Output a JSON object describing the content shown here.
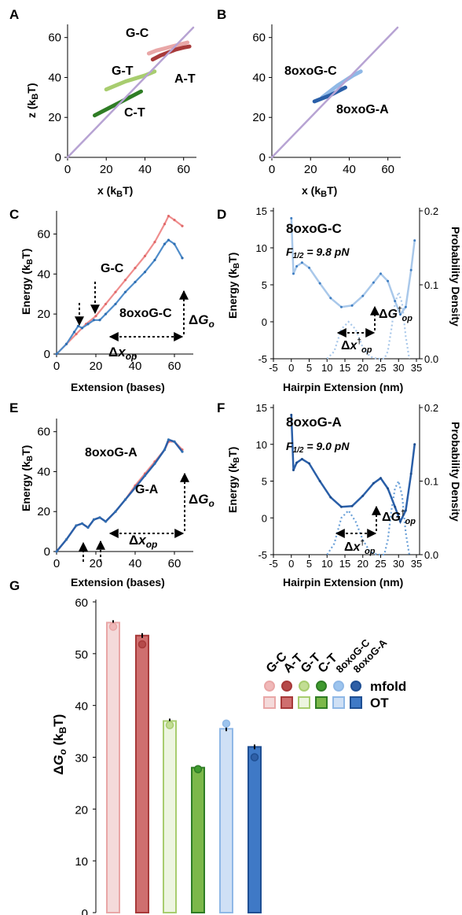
{
  "panels": {
    "A": "A",
    "B": "B",
    "C": "C",
    "D": "D",
    "E": "E",
    "F": "F",
    "G": "G"
  },
  "colors": {
    "GC": "#e9a7a7",
    "AT": "#a83a3a",
    "GT": "#a8cd6f",
    "CT": "#2f7d25",
    "oxoC": "#8fb8e6",
    "oxoA": "#2a5fa8",
    "diag": "#b7a3d3",
    "pinkLine": "#ef8d8d",
    "blueDot": "#4f8cc9",
    "blueLine": "#a9c8ea"
  },
  "chart_data": [
    {
      "panel": "A",
      "type": "line",
      "xlabel": "x (kBT)",
      "ylabel": "z (kBT)",
      "xlim": [
        0,
        65
      ],
      "ylim": [
        0,
        65
      ],
      "xticks": [
        "0",
        "20",
        "40",
        "60"
      ],
      "yticks": [
        "0",
        "20",
        "40",
        "60"
      ],
      "series": [
        {
          "name": "G-C",
          "color": "#e9a7a7",
          "x": [
            42,
            46,
            50,
            54,
            58,
            62
          ],
          "y": [
            52,
            53.5,
            54.5,
            55.5,
            56.5,
            57.5
          ]
        },
        {
          "name": "A-T",
          "color": "#a83a3a",
          "x": [
            44,
            48,
            52,
            56,
            60,
            63
          ],
          "y": [
            49,
            51,
            52.5,
            54,
            55,
            55.5
          ]
        },
        {
          "name": "G-T",
          "color": "#a8cd6f",
          "x": [
            20,
            25,
            30,
            35,
            40,
            45
          ],
          "y": [
            34,
            36,
            38,
            39.5,
            41,
            43
          ]
        },
        {
          "name": "C-T",
          "color": "#2f7d25",
          "x": [
            14,
            18,
            22,
            26,
            30,
            34,
            38
          ],
          "y": [
            21,
            23,
            25,
            27,
            29,
            31,
            33
          ]
        },
        {
          "name": "",
          "color": "#b7a3d3",
          "x": [
            0,
            65
          ],
          "y": [
            0,
            65
          ]
        }
      ]
    },
    {
      "panel": "B",
      "type": "line",
      "xlabel": "x (kBT)",
      "ylabel": "",
      "xlim": [
        0,
        65
      ],
      "ylim": [
        0,
        65
      ],
      "xticks": [
        "0",
        "20",
        "40",
        "60"
      ],
      "yticks": [
        "0",
        "20",
        "40",
        "60"
      ],
      "series": [
        {
          "name": "8oxoG-C",
          "color": "#8fb8e6",
          "x": [
            26,
            30,
            34,
            38,
            42,
            46
          ],
          "y": [
            30,
            33,
            36,
            38.5,
            41,
            43
          ]
        },
        {
          "name": "8oxoG-A",
          "color": "#2a5fa8",
          "x": [
            22,
            26,
            30,
            34,
            38
          ],
          "y": [
            28,
            29.5,
            31,
            33,
            35
          ]
        },
        {
          "name": "",
          "color": "#b7a3d3",
          "x": [
            0,
            65
          ],
          "y": [
            0,
            65
          ]
        }
      ]
    },
    {
      "panel": "C",
      "type": "line",
      "xlabel": "Extension (bases)",
      "ylabel": "Energy (kBT)",
      "xlim": [
        0,
        68
      ],
      "ylim": [
        0,
        70
      ],
      "xticks": [
        "0",
        "20",
        "40",
        "60"
      ],
      "yticks": [
        "0",
        "20",
        "40",
        "60"
      ],
      "series": [
        {
          "name": "G-C",
          "color": "#ef8d8d",
          "x": [
            0,
            5,
            10,
            15,
            20,
            25,
            30,
            35,
            40,
            45,
            50,
            55,
            57,
            60,
            64
          ],
          "y": [
            0,
            5,
            10,
            15,
            19,
            25,
            31,
            37,
            43,
            49,
            56,
            65,
            69,
            67,
            64
          ]
        },
        {
          "name": "8oxoG-C",
          "color": "#4f8cc9",
          "x": [
            0,
            5,
            9,
            11,
            13,
            16,
            19,
            22,
            25,
            30,
            35,
            40,
            45,
            50,
            55,
            57,
            60,
            64
          ],
          "y": [
            0,
            5,
            11,
            14,
            13,
            15,
            17,
            17,
            20,
            25,
            31,
            36,
            41,
            47,
            55,
            57,
            55,
            48
          ]
        }
      ],
      "annotations": [
        "G-C",
        "8oxoG-C",
        "ΔGo",
        "Δxop"
      ]
    },
    {
      "panel": "D",
      "type": "line",
      "title": "8oxoG-C",
      "subtitle": "F1/2 = 9.8 pN",
      "xlabel": "Hairpin Extension (nm)",
      "ylabel": "Energy (kBT)",
      "y2label": "Probability Density",
      "xlim": [
        -5,
        35
      ],
      "ylim": [
        -5,
        15
      ],
      "y2lim": [
        0,
        0.2
      ],
      "xticks": [
        "-5",
        "0",
        "5",
        "10",
        "15",
        "20",
        "25",
        "30",
        "35"
      ],
      "yticks": [
        "-5",
        "0",
        "5",
        "10",
        "15"
      ],
      "y2ticks": [
        "0.0",
        "0.1",
        "0.2"
      ],
      "series": [
        {
          "name": "energy",
          "color": "#4f8cc9",
          "x": [
            0,
            0.6,
            1.5,
            3,
            5,
            8,
            11,
            14,
            17,
            20,
            23,
            25,
            27,
            29,
            30.5,
            32,
            33.5,
            34.5
          ],
          "y": [
            14,
            6.5,
            7.5,
            8,
            7.3,
            5.2,
            3.2,
            2,
            2.2,
            3.5,
            5.3,
            6.5,
            5.5,
            2.8,
            1,
            2,
            7,
            11
          ]
        },
        {
          "name": "density",
          "color": "#a9c8ea",
          "x": [
            10,
            12,
            14,
            16,
            18,
            20,
            22,
            24,
            26,
            27,
            28,
            29,
            30,
            31,
            32,
            33
          ],
          "y": [
            0,
            0.01,
            0.04,
            0.05,
            0.04,
            0.015,
            0.003,
            0,
            0,
            0.01,
            0.04,
            0.075,
            0.09,
            0.075,
            0.03,
            0
          ]
        }
      ],
      "annotations": [
        "ΔG†op",
        "Δx†op"
      ]
    },
    {
      "panel": "E",
      "type": "line",
      "xlabel": "Extension (bases)",
      "ylabel": "Energy (kBT)",
      "xlim": [
        0,
        68
      ],
      "ylim": [
        0,
        65
      ],
      "xticks": [
        "0",
        "20",
        "40",
        "60"
      ],
      "yticks": [
        "0",
        "20",
        "40",
        "60"
      ],
      "series": [
        {
          "name": "G-A",
          "color": "#ef8d8d",
          "x": [
            0,
            5,
            10,
            13,
            16,
            19,
            22,
            25,
            30,
            35,
            40,
            45,
            50,
            55,
            57,
            60,
            64
          ],
          "y": [
            0,
            6,
            13,
            14,
            12,
            16,
            17,
            15,
            20,
            26,
            33,
            39,
            45,
            51,
            55,
            55,
            51
          ]
        },
        {
          "name": "8oxoG-A",
          "color": "#2a5fa8",
          "x": [
            0,
            5,
            10,
            13,
            16,
            19,
            22,
            25,
            30,
            35,
            40,
            45,
            50,
            55,
            57,
            60,
            64
          ],
          "y": [
            0,
            6,
            13,
            14,
            12,
            16,
            17,
            15,
            20,
            26,
            32,
            38,
            44,
            51,
            56,
            55,
            50
          ]
        }
      ],
      "annotations": [
        "8oxoG-A",
        "G-A",
        "ΔGo",
        "Δxop"
      ]
    },
    {
      "panel": "F",
      "type": "line",
      "title": "8oxoG-A",
      "subtitle": "F1/2 = 9.0 pN",
      "xlabel": "Hairpin Extension (nm)",
      "ylabel": "Energy (kBT)",
      "y2label": "Probability Density",
      "xlim": [
        -5,
        35
      ],
      "ylim": [
        -5,
        15
      ],
      "y2lim": [
        0,
        0.2
      ],
      "xticks": [
        "-5",
        "0",
        "5",
        "10",
        "15",
        "20",
        "25",
        "30",
        "35"
      ],
      "yticks": [
        "-5",
        "0",
        "5",
        "10",
        "15"
      ],
      "y2ticks": [
        "0.0",
        "0.1",
        "0.2"
      ],
      "series": [
        {
          "name": "energy",
          "color": "#2a5fa8",
          "x": [
            0,
            0.6,
            1.5,
            3,
            5,
            8,
            11,
            14,
            17,
            20,
            23,
            25,
            27,
            29,
            30.5,
            32,
            33.5,
            34.5
          ],
          "y": [
            14,
            6.5,
            7.5,
            8,
            7.4,
            5,
            2.8,
            1.5,
            1.6,
            3,
            4.7,
            5.4,
            4,
            1.5,
            -0.5,
            1,
            6,
            10
          ]
        },
        {
          "name": "density",
          "color": "#6aa0d8",
          "x": [
            10,
            12,
            14,
            16,
            18,
            20,
            22,
            24,
            26,
            27,
            28,
            29,
            30,
            31,
            32,
            33
          ],
          "y": [
            0,
            0.015,
            0.05,
            0.06,
            0.045,
            0.02,
            0.004,
            0,
            0,
            0.02,
            0.06,
            0.09,
            0.1,
            0.08,
            0.03,
            0
          ]
        }
      ],
      "annotations": [
        "ΔG†op",
        "Δx†op"
      ]
    },
    {
      "panel": "G",
      "type": "bar",
      "ylabel": "ΔGo (kBT)",
      "ylim": [
        0,
        60
      ],
      "yticks": [
        "0",
        "10",
        "20",
        "30",
        "40",
        "50",
        "60"
      ],
      "categories": [
        "G-C",
        "A-T",
        "G-T",
        "C-T",
        "8oxoG-C",
        "8oxoG-A"
      ],
      "series": [
        {
          "name": "OT",
          "values": [
            56,
            53.5,
            37,
            28,
            35.5,
            32
          ]
        },
        {
          "name": "mfold",
          "values": [
            55.2,
            51.8,
            36.2,
            27.7,
            36.5,
            30
          ]
        }
      ],
      "legend": [
        "mfold",
        "OT"
      ]
    }
  ]
}
